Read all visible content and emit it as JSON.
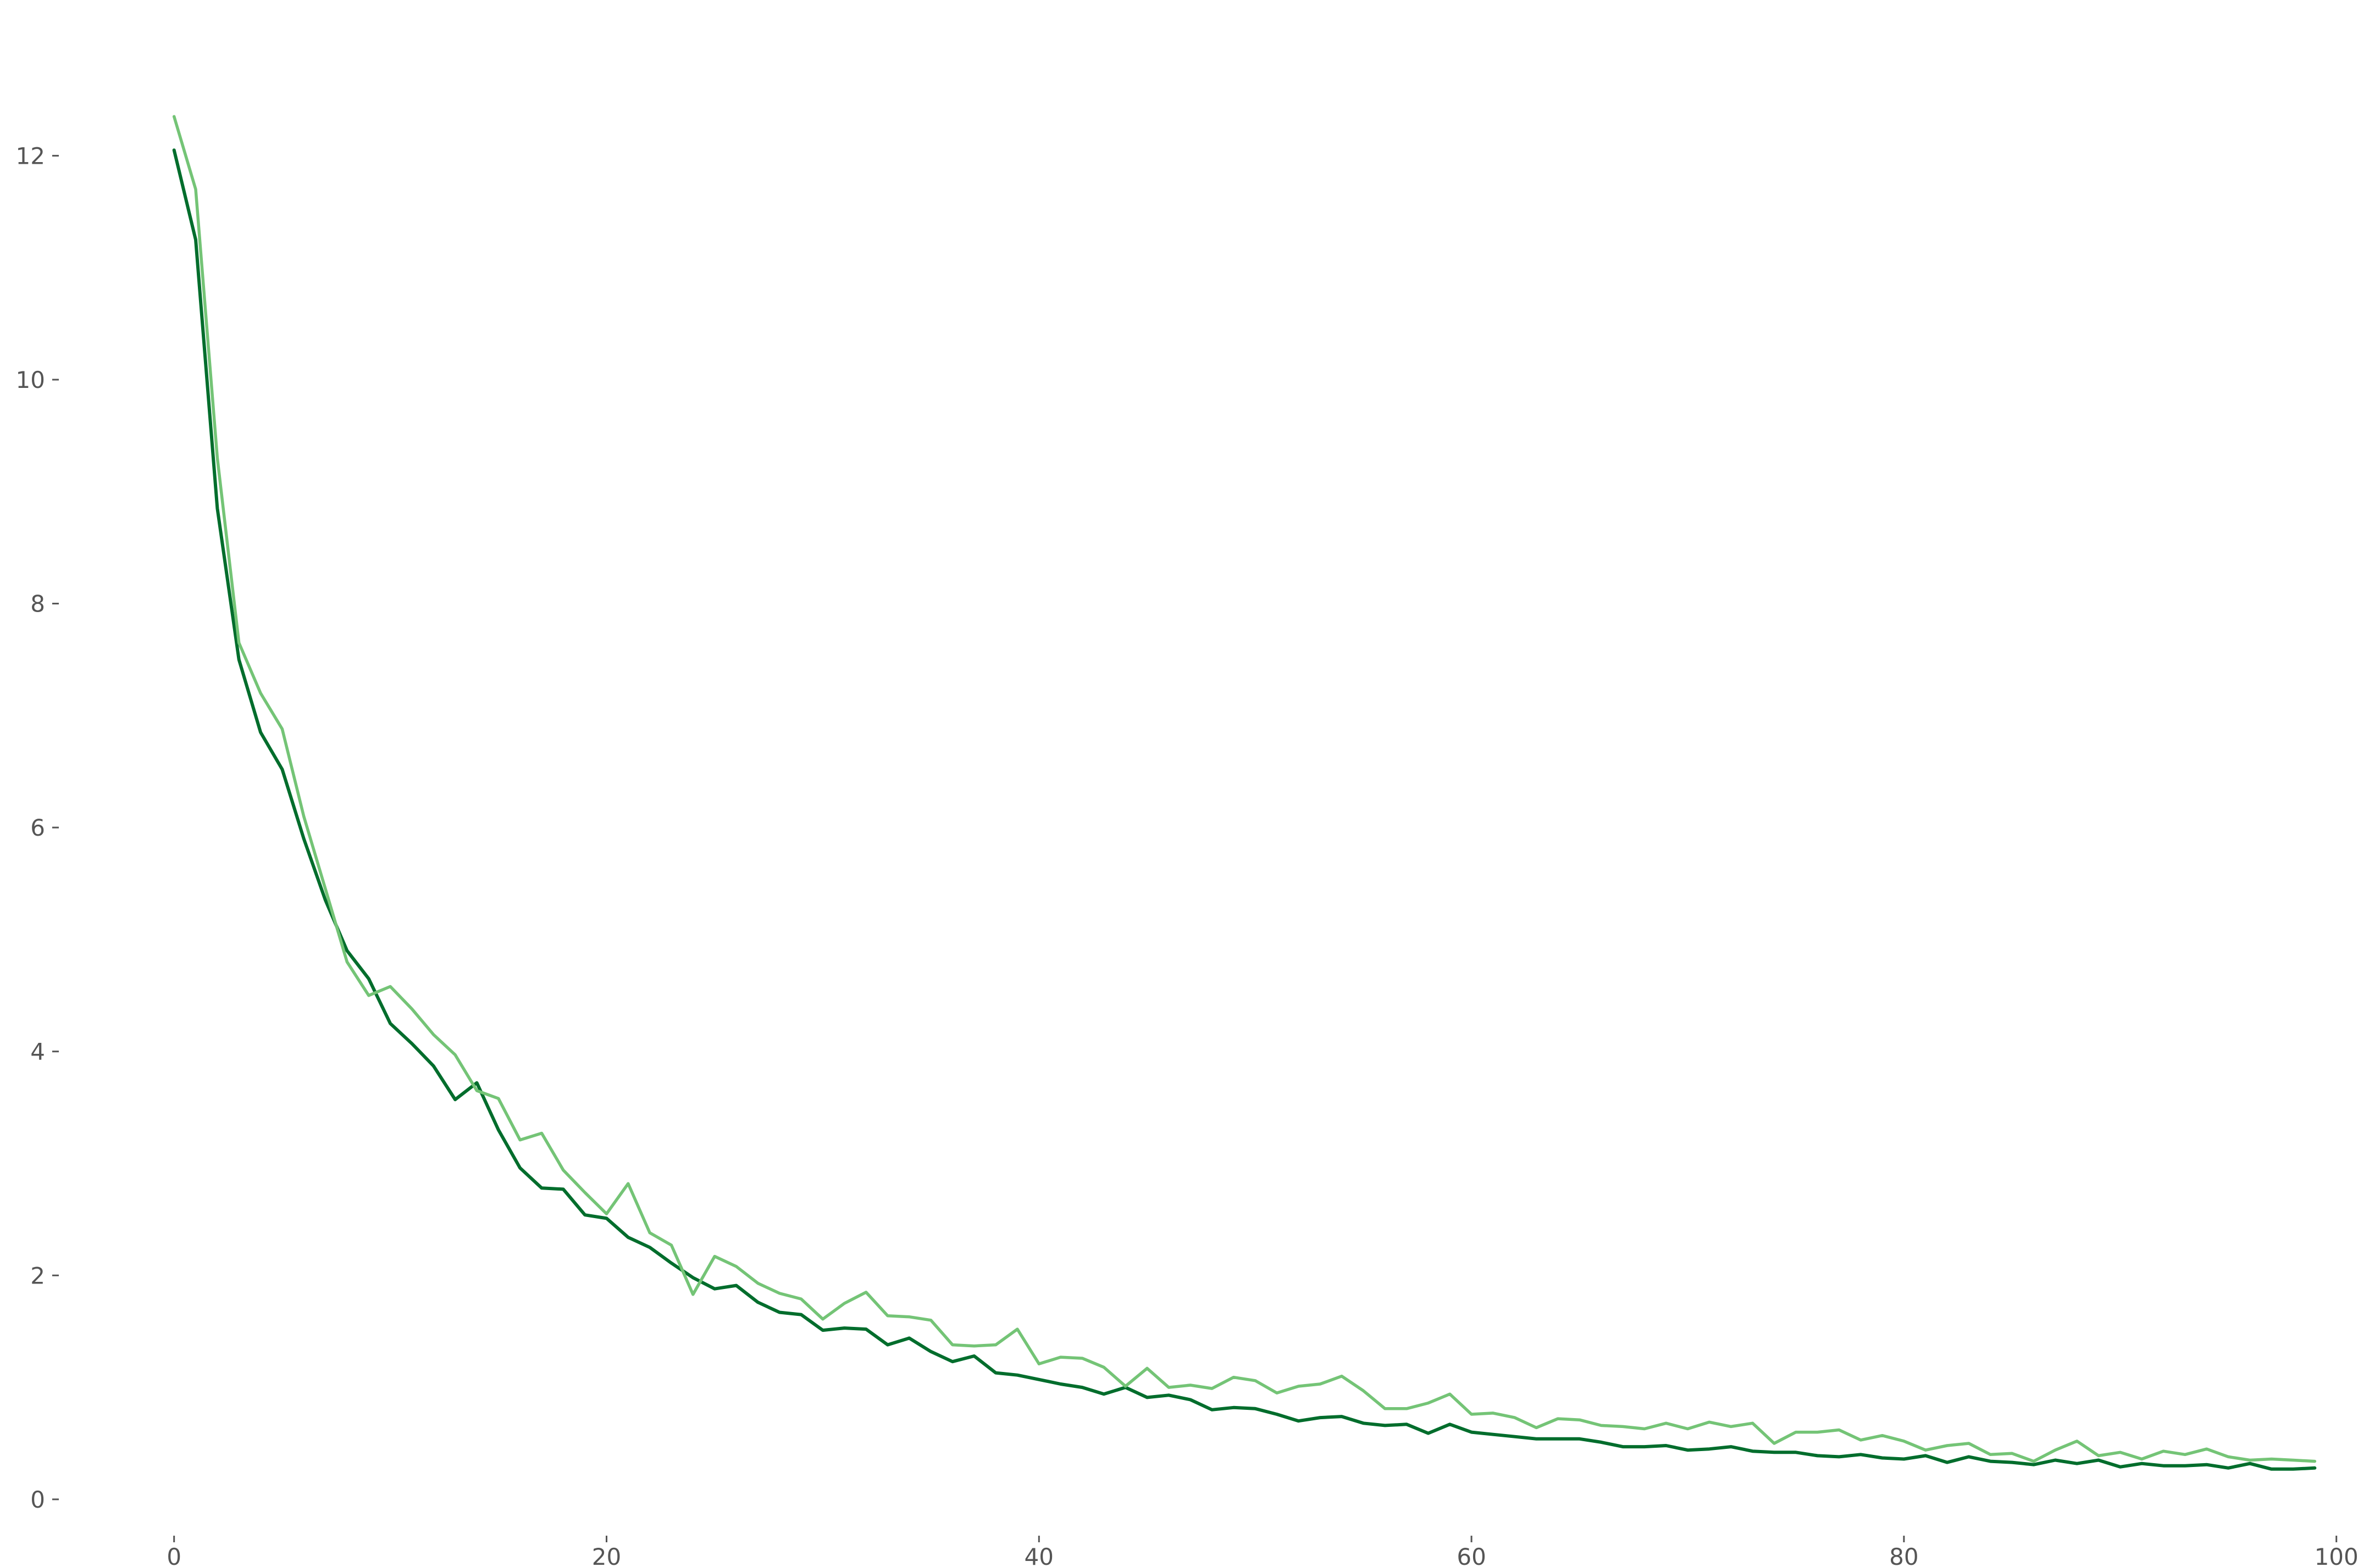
{
  "chart_data": {
    "type": "line",
    "title": "",
    "xlabel": "",
    "ylabel": "",
    "xlim": [
      -5,
      101
    ],
    "ylim": [
      -0.3,
      12.9
    ],
    "grid": false,
    "x_ticks": [
      0,
      20,
      40,
      60,
      80,
      100
    ],
    "x_tick_labels": [
      "0",
      "20",
      "40",
      "60",
      "80",
      "100"
    ],
    "y_ticks": [
      0,
      2,
      4,
      6,
      8,
      10,
      12
    ],
    "y_tick_labels": [
      "0",
      "2",
      "4",
      "6",
      "8",
      "10",
      "12"
    ],
    "x": [
      0,
      1,
      2,
      3,
      4,
      5,
      6,
      7,
      8,
      9,
      10,
      11,
      12,
      13,
      14,
      15,
      16,
      17,
      18,
      19,
      20,
      21,
      22,
      23,
      24,
      25,
      26,
      27,
      28,
      29,
      30,
      31,
      32,
      33,
      34,
      35,
      36,
      37,
      38,
      39,
      40,
      41,
      42,
      43,
      44,
      45,
      46,
      47,
      48,
      49,
      50,
      51,
      52,
      53,
      54,
      55,
      56,
      57,
      58,
      59,
      60,
      61,
      62,
      63,
      64,
      65,
      66,
      67,
      68,
      69,
      70,
      71,
      72,
      73,
      74,
      75,
      76,
      77,
      78,
      79,
      80,
      81,
      82,
      83,
      84,
      85,
      86,
      87,
      88,
      89,
      90,
      91,
      92,
      93,
      94,
      95,
      96,
      97,
      98,
      99
    ],
    "series": [
      {
        "color": "#006d2c",
        "values": [
          12.05,
          11.25,
          8.85,
          7.5,
          6.85,
          6.52,
          5.9,
          5.35,
          4.9,
          4.65,
          4.25,
          4.07,
          3.87,
          3.57,
          3.72,
          3.3,
          2.96,
          2.78,
          2.77,
          2.54,
          2.51,
          2.34,
          2.25,
          2.11,
          1.98,
          1.88,
          1.91,
          1.76,
          1.67,
          1.65,
          1.51,
          1.53,
          1.52,
          1.38,
          1.44,
          1.32,
          1.23,
          1.28,
          1.13,
          1.11,
          1.07,
          1.03,
          1.0,
          0.94,
          1.0,
          0.91,
          0.93,
          0.89,
          0.8,
          0.82,
          0.81,
          0.76,
          0.7,
          0.73,
          0.74,
          0.68,
          0.66,
          0.67,
          0.59,
          0.67,
          0.6,
          0.58,
          0.56,
          0.54,
          0.54,
          0.54,
          0.51,
          0.47,
          0.47,
          0.48,
          0.44,
          0.45,
          0.47,
          0.43,
          0.42,
          0.42,
          0.39,
          0.38,
          0.4,
          0.37,
          0.36,
          0.39,
          0.33,
          0.38,
          0.34,
          0.33,
          0.31,
          0.35,
          0.32,
          0.35,
          0.29,
          0.32,
          0.3,
          0.3,
          0.31,
          0.28,
          0.32,
          0.27,
          0.27,
          0.28
        ]
      },
      {
        "color": "#74c476",
        "values": [
          12.35,
          11.7,
          9.3,
          7.65,
          7.2,
          6.88,
          6.1,
          5.45,
          4.8,
          4.5,
          4.58,
          4.38,
          4.15,
          3.97,
          3.65,
          3.58,
          3.21,
          3.27,
          2.94,
          2.74,
          2.55,
          2.82,
          2.38,
          2.27,
          1.83,
          2.17,
          2.08,
          1.93,
          1.84,
          1.79,
          1.61,
          1.75,
          1.85,
          1.64,
          1.63,
          1.6,
          1.38,
          1.37,
          1.38,
          1.52,
          1.21,
          1.27,
          1.26,
          1.18,
          1.01,
          1.17,
          1.0,
          1.02,
          0.99,
          1.09,
          1.06,
          0.95,
          1.01,
          1.03,
          1.1,
          0.97,
          0.81,
          0.81,
          0.86,
          0.94,
          0.76,
          0.77,
          0.73,
          0.64,
          0.72,
          0.71,
          0.66,
          0.65,
          0.63,
          0.68,
          0.63,
          0.69,
          0.65,
          0.68,
          0.5,
          0.6,
          0.6,
          0.62,
          0.53,
          0.57,
          0.52,
          0.44,
          0.48,
          0.5,
          0.4,
          0.41,
          0.34,
          0.44,
          0.52,
          0.39,
          0.42,
          0.36,
          0.43,
          0.4,
          0.45,
          0.38,
          0.35,
          0.36,
          0.35,
          0.34
        ]
      }
    ]
  }
}
